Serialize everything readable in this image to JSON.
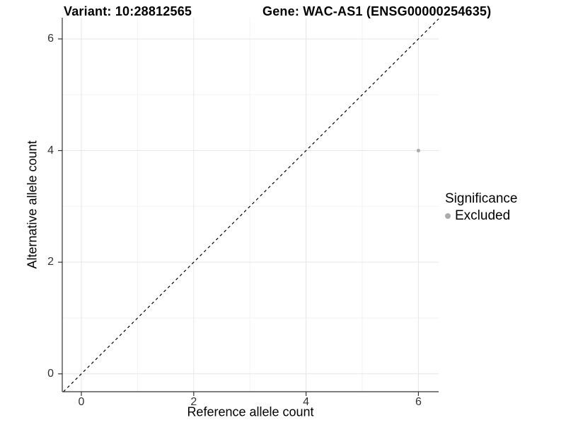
{
  "chart_data": {
    "type": "scatter",
    "title_left": "Variant: 10:28812565",
    "title_right": "Gene: WAC-AS1 (ENSG00000254635)",
    "xlabel": "Reference allele count",
    "ylabel": "Alternative allele count",
    "x_ticks": [
      0,
      2,
      4,
      6
    ],
    "y_ticks": [
      0,
      2,
      4,
      6
    ],
    "x_minor_ticks": [
      1,
      3,
      5
    ],
    "y_minor_ticks": [
      1,
      3,
      5
    ],
    "xlim": [
      -0.34,
      6.36
    ],
    "ylim": [
      -0.32,
      6.38
    ],
    "grid": true,
    "identity_line": {
      "equation": "y = x",
      "style": "dashed",
      "color": "#000000"
    },
    "series": [
      {
        "name": "Excluded",
        "color": "#ababab",
        "points": [
          {
            "x": 6,
            "y": 4
          }
        ]
      }
    ],
    "legend": {
      "title": "Significance",
      "position": "right",
      "items": [
        {
          "label": "Excluded",
          "color": "#ababab"
        }
      ]
    }
  },
  "colors": {
    "background": "#ffffff",
    "grid_major": "#e6e6e6",
    "grid_minor": "#f2f2f2",
    "axis_line": "#333333",
    "tick_mark": "#333333",
    "tick_label": "#333333"
  }
}
